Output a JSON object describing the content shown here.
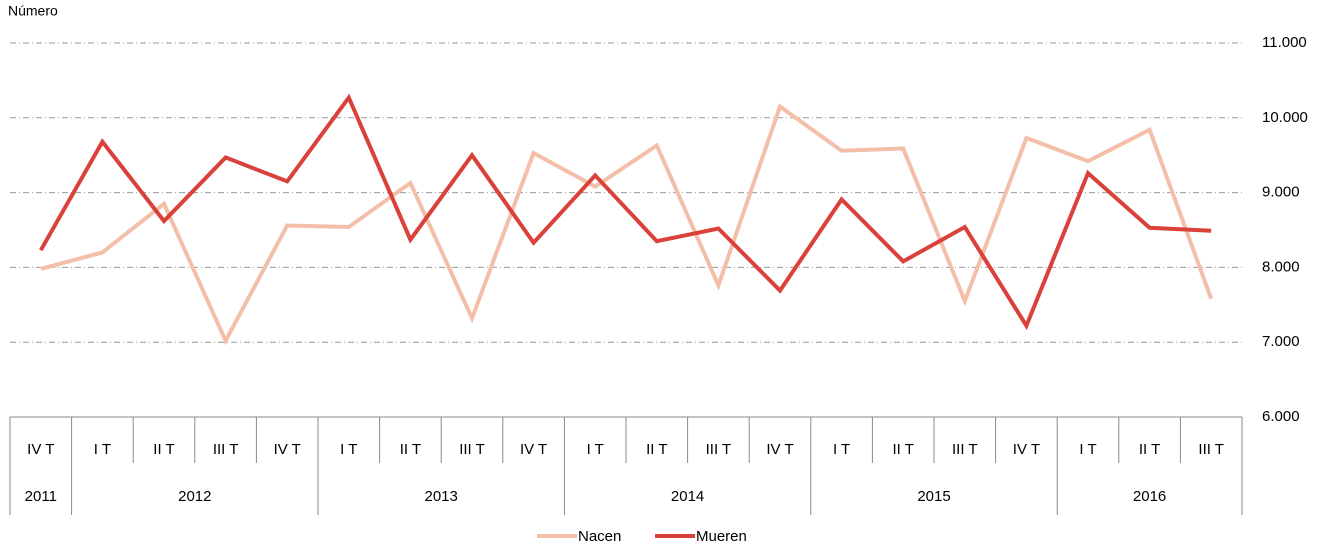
{
  "chart_data": {
    "type": "line",
    "y_label": "Número",
    "categories": [
      "IV T",
      "I T",
      "II T",
      "III T",
      "IV T",
      "I T",
      "II T",
      "III T",
      "IV T",
      "I T",
      "II T",
      "III T",
      "IV T",
      "I T",
      "II T",
      "III T",
      "IV T",
      "I T",
      "II T",
      "III T"
    ],
    "years": [
      "2011",
      "2012",
      null,
      null,
      null,
      "2013",
      null,
      null,
      null,
      "2014",
      null,
      null,
      null,
      "2015",
      null,
      null,
      null,
      "2016",
      null,
      null
    ],
    "series": [
      {
        "name": "Nacen",
        "color": "#f4bfa9",
        "values": [
          7980,
          8200,
          8850,
          7020,
          8560,
          8540,
          9130,
          7320,
          9530,
          9080,
          9630,
          7760,
          10150,
          9560,
          9590,
          7550,
          9730,
          9420,
          9840,
          7580
        ]
      },
      {
        "name": "Mueren",
        "color": "#d9413a",
        "values": [
          8230,
          9680,
          8620,
          9470,
          9150,
          10270,
          8370,
          9500,
          8330,
          9230,
          8350,
          8520,
          7690,
          8910,
          8080,
          8540,
          7220,
          9260,
          8530,
          8490
        ]
      }
    ],
    "ylim": [
      6000,
      11000
    ],
    "yticks": [
      {
        "value": 6000,
        "label": "6.000"
      },
      {
        "value": 7000,
        "label": "7.000"
      },
      {
        "value": 8000,
        "label": "8.000"
      },
      {
        "value": 9000,
        "label": "9.000"
      },
      {
        "value": 10000,
        "label": "10.000"
      },
      {
        "value": 11000,
        "label": "11.000"
      }
    ],
    "grid": true,
    "legend": "bottom"
  }
}
